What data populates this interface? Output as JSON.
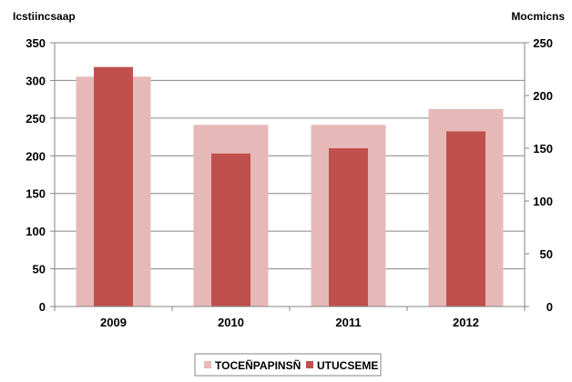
{
  "chart_data": {
    "type": "bar",
    "ylabel_left": "Icstiincsaap",
    "ylabel_right": "Mocmicns",
    "categories": [
      "2009",
      "2010",
      "2011",
      "2012"
    ],
    "ylim_left": [
      0,
      350
    ],
    "ylim_right": [
      0,
      250
    ],
    "yticks_left": [
      "350",
      "300",
      "250",
      "200",
      "150",
      "100",
      "50",
      "0"
    ],
    "yticks_right": [
      "250",
      "200",
      "150",
      "100",
      "50",
      "0"
    ],
    "grid": true,
    "legend_position": "bottom",
    "series": [
      {
        "name": "TOCEÑPAPINSÑ",
        "axis": "left",
        "color": "#e6b9b8",
        "values": [
          305,
          241,
          241,
          262
        ]
      },
      {
        "name": "UTUCSEME",
        "axis": "right",
        "color": "#c0504d",
        "values": [
          227,
          145,
          150,
          166
        ]
      }
    ]
  }
}
